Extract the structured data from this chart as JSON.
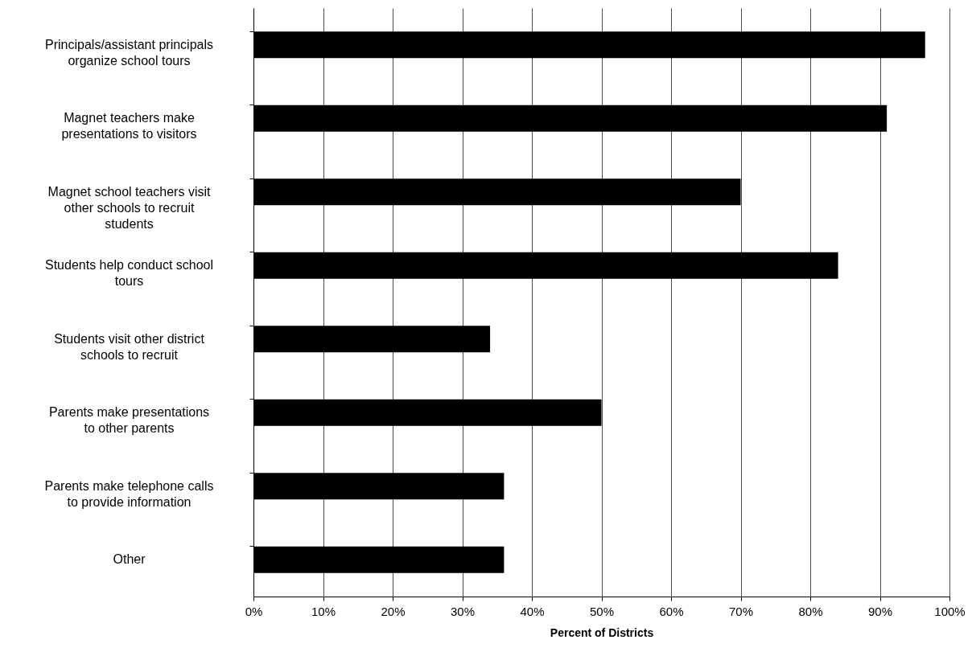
{
  "chart_data": {
    "type": "bar",
    "orientation": "horizontal",
    "xlabel": "Percent of Districts",
    "categories": [
      "Principals/assistant principals\norganize school tours",
      "Magnet teachers make\npresentations to visitors",
      "Magnet school teachers visit\nother schools to recruit\nstudents",
      "Students help conduct school\ntours",
      "Students visit other district\nschools to recruit",
      "Parents make presentations\nto other parents",
      "Parents make telephone calls\nto provide information",
      "Other"
    ],
    "values": [
      96.5,
      91,
      70,
      84,
      34,
      50,
      36,
      36
    ],
    "color": "#000000",
    "xlim": [
      0,
      100
    ],
    "xticks": [
      {
        "value": 0,
        "label": "0%"
      },
      {
        "value": 10,
        "label": "10%"
      },
      {
        "value": 20,
        "label": "20%"
      },
      {
        "value": 30,
        "label": "30%"
      },
      {
        "value": 40,
        "label": "40%"
      },
      {
        "value": 50,
        "label": "50%"
      },
      {
        "value": 60,
        "label": "60%"
      },
      {
        "value": 70,
        "label": "70%"
      },
      {
        "value": 80,
        "label": "80%"
      },
      {
        "value": 90,
        "label": "90%"
      },
      {
        "value": 100,
        "label": "100%"
      }
    ],
    "grid": "x"
  }
}
